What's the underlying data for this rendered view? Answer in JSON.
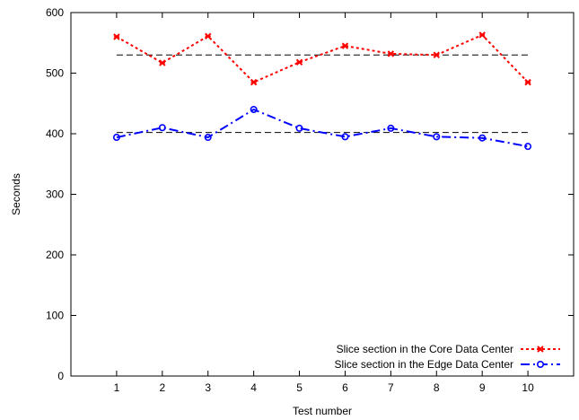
{
  "chart_data": {
    "type": "line",
    "xlabel": "Test number",
    "ylabel": "Seconds",
    "xlim": [
      0,
      11
    ],
    "ylim": [
      0,
      600
    ],
    "x_ticks": [
      1,
      2,
      3,
      4,
      5,
      6,
      7,
      8,
      9,
      10
    ],
    "y_ticks": [
      0,
      100,
      200,
      300,
      400,
      500,
      600
    ],
    "grid": false,
    "legend_position": "bottom-right",
    "x": [
      1,
      2,
      3,
      4,
      5,
      6,
      7,
      8,
      9,
      10
    ],
    "series": [
      {
        "name": "Slice section in the Core Data Center",
        "values": [
          560,
          517,
          561,
          485,
          518,
          545,
          532,
          530,
          563,
          485
        ],
        "color": "#ff0000",
        "marker": "x",
        "line_style": "dotted",
        "mean": 530
      },
      {
        "name": "Slice section in the Edge Data Center",
        "values": [
          394,
          410,
          394,
          440,
          409,
          395,
          409,
          395,
          393,
          379
        ],
        "color": "#0000ff",
        "marker": "circle",
        "line_style": "dash-dot",
        "mean": 402
      }
    ],
    "reference_line_color": "#000000"
  }
}
